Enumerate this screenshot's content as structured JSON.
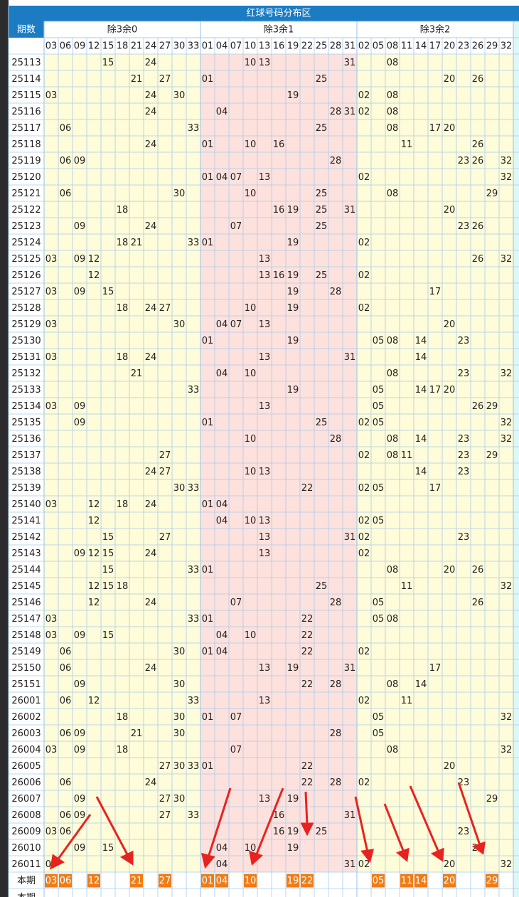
{
  "header": {
    "period_label": "期数",
    "title": "红球号码分布区",
    "groups": [
      {
        "name": "除3余0",
        "numbers": [
          "03",
          "06",
          "09",
          "12",
          "15",
          "18",
          "21",
          "24",
          "27",
          "30",
          "33"
        ]
      },
      {
        "name": "除3余1",
        "numbers": [
          "01",
          "04",
          "07",
          "10",
          "13",
          "16",
          "19",
          "22",
          "25",
          "28",
          "31"
        ]
      },
      {
        "name": "除3余2",
        "numbers": [
          "02",
          "05",
          "08",
          "11",
          "14",
          "17",
          "20",
          "23",
          "26",
          "29",
          "32"
        ]
      }
    ]
  },
  "rows": [
    {
      "period": "25113",
      "numbers": [
        "15",
        "24",
        "10",
        "13",
        "31",
        "08"
      ]
    },
    {
      "period": "25114",
      "numbers": [
        "21",
        "27",
        "01",
        "25",
        "20",
        "26"
      ]
    },
    {
      "period": "25115",
      "numbers": [
        "03",
        "24",
        "30",
        "19",
        "02",
        "08"
      ]
    },
    {
      "period": "25116",
      "numbers": [
        "24",
        "04",
        "28",
        "31",
        "02",
        "08"
      ]
    },
    {
      "period": "25117",
      "numbers": [
        "06",
        "33",
        "25",
        "08",
        "17",
        "20"
      ]
    },
    {
      "period": "25118",
      "numbers": [
        "24",
        "01",
        "10",
        "16",
        "11",
        "26"
      ]
    },
    {
      "period": "25119",
      "numbers": [
        "06",
        "09",
        "28",
        "23",
        "26",
        "32"
      ]
    },
    {
      "period": "25120",
      "numbers": [
        "01",
        "04",
        "07",
        "13",
        "02",
        "32"
      ]
    },
    {
      "period": "25121",
      "numbers": [
        "06",
        "30",
        "10",
        "25",
        "08",
        "29"
      ]
    },
    {
      "period": "25122",
      "numbers": [
        "18",
        "16",
        "19",
        "25",
        "31",
        "20"
      ]
    },
    {
      "period": "25123",
      "numbers": [
        "09",
        "24",
        "07",
        "25",
        "23",
        "26"
      ]
    },
    {
      "period": "25124",
      "numbers": [
        "18",
        "21",
        "33",
        "01",
        "19",
        "02"
      ]
    },
    {
      "period": "25125",
      "numbers": [
        "03",
        "09",
        "12",
        "13",
        "26",
        "32"
      ]
    },
    {
      "period": "25126",
      "numbers": [
        "12",
        "13",
        "16",
        "19",
        "25",
        "02"
      ]
    },
    {
      "period": "25127",
      "numbers": [
        "03",
        "09",
        "15",
        "19",
        "28",
        "17"
      ]
    },
    {
      "period": "25128",
      "numbers": [
        "18",
        "24",
        "27",
        "10",
        "19",
        "02"
      ]
    },
    {
      "period": "25129",
      "numbers": [
        "03",
        "30",
        "04",
        "07",
        "13",
        "20"
      ]
    },
    {
      "period": "25130",
      "numbers": [
        "01",
        "19",
        "05",
        "08",
        "14",
        "23"
      ]
    },
    {
      "period": "25131",
      "numbers": [
        "03",
        "18",
        "24",
        "13",
        "31",
        "14"
      ]
    },
    {
      "period": "25132",
      "numbers": [
        "21",
        "04",
        "10",
        "08",
        "23",
        "32"
      ]
    },
    {
      "period": "25133",
      "numbers": [
        "33",
        "19",
        "05",
        "14",
        "17",
        "20"
      ]
    },
    {
      "period": "25134",
      "numbers": [
        "03",
        "09",
        "13",
        "05",
        "26",
        "29"
      ]
    },
    {
      "period": "25135",
      "numbers": [
        "09",
        "01",
        "25",
        "02",
        "05",
        "32"
      ]
    },
    {
      "period": "25136",
      "numbers": [
        "10",
        "28",
        "08",
        "14",
        "23",
        "32"
      ]
    },
    {
      "period": "25137",
      "numbers": [
        "27",
        "02",
        "08",
        "11",
        "23",
        "29"
      ]
    },
    {
      "period": "25138",
      "numbers": [
        "24",
        "27",
        "10",
        "13",
        "14",
        "23"
      ]
    },
    {
      "period": "25139",
      "numbers": [
        "30",
        "33",
        "22",
        "02",
        "05",
        "17"
      ]
    },
    {
      "period": "25140",
      "numbers": [
        "03",
        "12",
        "18",
        "24",
        "01",
        "04"
      ]
    },
    {
      "period": "25141",
      "numbers": [
        "12",
        "04",
        "10",
        "13",
        "02",
        "05"
      ]
    },
    {
      "period": "25142",
      "numbers": [
        "15",
        "27",
        "13",
        "31",
        "02",
        "23"
      ]
    },
    {
      "period": "25143",
      "numbers": [
        "09",
        "12",
        "15",
        "24",
        "13",
        "02"
      ]
    },
    {
      "period": "25144",
      "numbers": [
        "15",
        "33",
        "01",
        "08",
        "20",
        "26"
      ]
    },
    {
      "period": "25145",
      "numbers": [
        "12",
        "15",
        "18",
        "25",
        "11",
        "32"
      ]
    },
    {
      "period": "25146",
      "numbers": [
        "12",
        "24",
        "07",
        "28",
        "05",
        "26"
      ]
    },
    {
      "period": "25147",
      "numbers": [
        "03",
        "33",
        "01",
        "22",
        "05",
        "08"
      ]
    },
    {
      "period": "25148",
      "numbers": [
        "03",
        "09",
        "15",
        "04",
        "10",
        "22"
      ]
    },
    {
      "period": "25149",
      "numbers": [
        "06",
        "30",
        "01",
        "04",
        "22",
        "02"
      ]
    },
    {
      "period": "25150",
      "numbers": [
        "06",
        "24",
        "13",
        "19",
        "31",
        "17"
      ]
    },
    {
      "period": "25151",
      "numbers": [
        "09",
        "30",
        "22",
        "28",
        "08",
        "14"
      ]
    },
    {
      "period": "26001",
      "numbers": [
        "06",
        "12",
        "33",
        "13",
        "02",
        "11"
      ]
    },
    {
      "period": "26002",
      "numbers": [
        "18",
        "30",
        "01",
        "07",
        "05",
        "32"
      ]
    },
    {
      "period": "26003",
      "numbers": [
        "06",
        "09",
        "21",
        "30",
        "28",
        "05"
      ]
    },
    {
      "period": "26004",
      "numbers": [
        "03",
        "09",
        "18",
        "07",
        "08",
        "32"
      ]
    },
    {
      "period": "26005",
      "numbers": [
        "27",
        "30",
        "33",
        "01",
        "22",
        "20"
      ]
    },
    {
      "period": "26006",
      "numbers": [
        "06",
        "24",
        "22",
        "28",
        "02",
        "23"
      ]
    },
    {
      "period": "26007",
      "numbers": [
        "09",
        "27",
        "30",
        "13",
        "19",
        "29"
      ]
    },
    {
      "period": "26008",
      "numbers": [
        "06",
        "09",
        "27",
        "33",
        "16",
        "31"
      ]
    },
    {
      "period": "26009",
      "numbers": [
        "03",
        "06",
        "16",
        "19",
        "25",
        "23"
      ]
    },
    {
      "period": "26010",
      "numbers": [
        "09",
        "15",
        "04",
        "10",
        "19",
        "26"
      ]
    },
    {
      "period": "26011",
      "numbers": [
        "03",
        "04",
        "31",
        "02",
        "20",
        "32"
      ]
    }
  ],
  "current": {
    "label": "本期",
    "numbers": [
      "03",
      "06",
      "12",
      "21",
      "27",
      "01",
      "04",
      "10",
      "19",
      "22",
      "05",
      "11",
      "14",
      "20",
      "29"
    ]
  },
  "next": {
    "label": "本期"
  }
}
